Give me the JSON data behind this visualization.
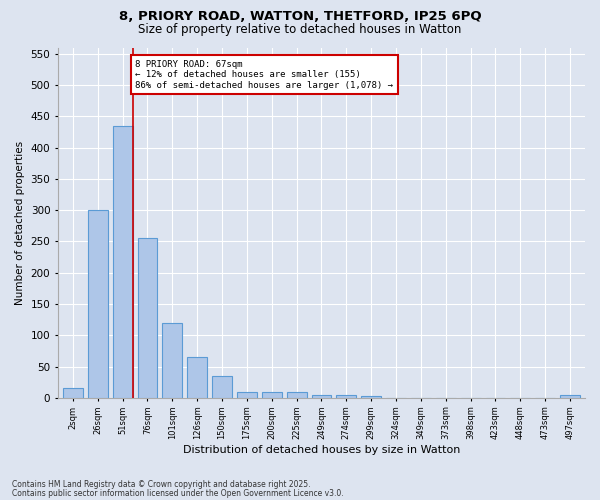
{
  "title_line1": "8, PRIORY ROAD, WATTON, THETFORD, IP25 6PQ",
  "title_line2": "Size of property relative to detached houses in Watton",
  "xlabel": "Distribution of detached houses by size in Watton",
  "ylabel": "Number of detached properties",
  "categories": [
    "2sqm",
    "26sqm",
    "51sqm",
    "76sqm",
    "101sqm",
    "126sqm",
    "150sqm",
    "175sqm",
    "200sqm",
    "225sqm",
    "249sqm",
    "274sqm",
    "299sqm",
    "324sqm",
    "349sqm",
    "373sqm",
    "398sqm",
    "423sqm",
    "448sqm",
    "473sqm",
    "497sqm"
  ],
  "values": [
    15,
    300,
    435,
    255,
    120,
    65,
    35,
    10,
    10,
    10,
    5,
    5,
    3,
    0,
    0,
    0,
    0,
    0,
    0,
    0,
    5
  ],
  "bar_color": "#aec6e8",
  "bar_edge_color": "#5b9bd5",
  "bar_width": 0.8,
  "ylim": [
    0,
    560
  ],
  "yticks": [
    0,
    50,
    100,
    150,
    200,
    250,
    300,
    350,
    400,
    450,
    500,
    550
  ],
  "vline_x": 2.4,
  "vline_color": "#cc0000",
  "annotation_text": "8 PRIORY ROAD: 67sqm\n← 12% of detached houses are smaller (155)\n86% of semi-detached houses are larger (1,078) →",
  "annotation_box_color": "#cc0000",
  "footer_line1": "Contains HM Land Registry data © Crown copyright and database right 2025.",
  "footer_line2": "Contains public sector information licensed under the Open Government Licence v3.0.",
  "bg_color": "#dde4f0",
  "plot_bg_color": "#dde4f0",
  "grid_color": "#ffffff"
}
